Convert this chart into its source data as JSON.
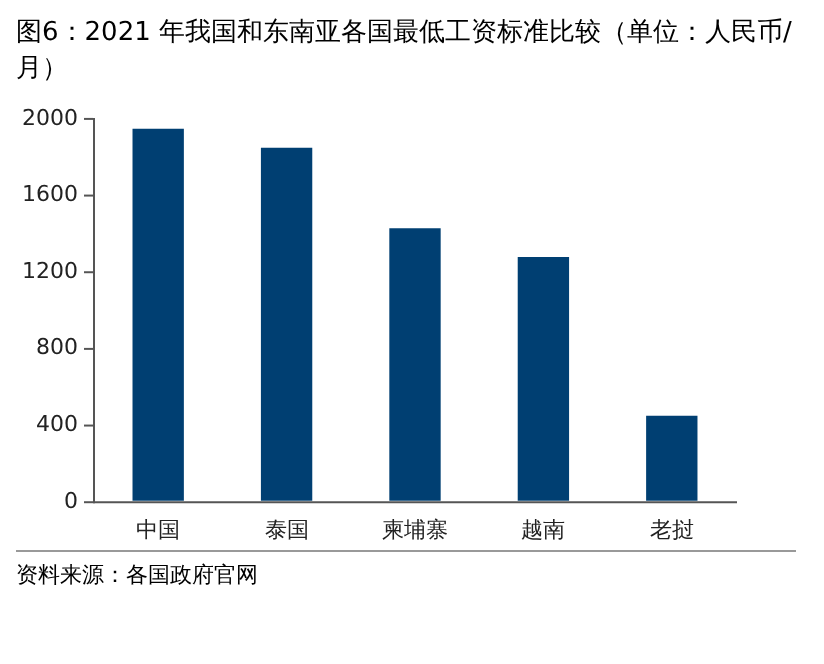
{
  "chart_data": {
    "type": "bar",
    "title": "图6：2021 年我国和东南亚各国最低工资标准比较（单位：人民币/月）",
    "categories": [
      "中国",
      "泰国",
      "柬埔寨",
      "越南",
      "老挝"
    ],
    "values": [
      1950,
      1850,
      1430,
      1280,
      450
    ],
    "color": "#003f72",
    "ylim": [
      0,
      2000
    ],
    "yticks": [
      0,
      400,
      800,
      1200,
      1600,
      2000
    ],
    "grid": false,
    "legend": false,
    "annotations": [
      "资料来源：各国政府官网"
    ]
  }
}
